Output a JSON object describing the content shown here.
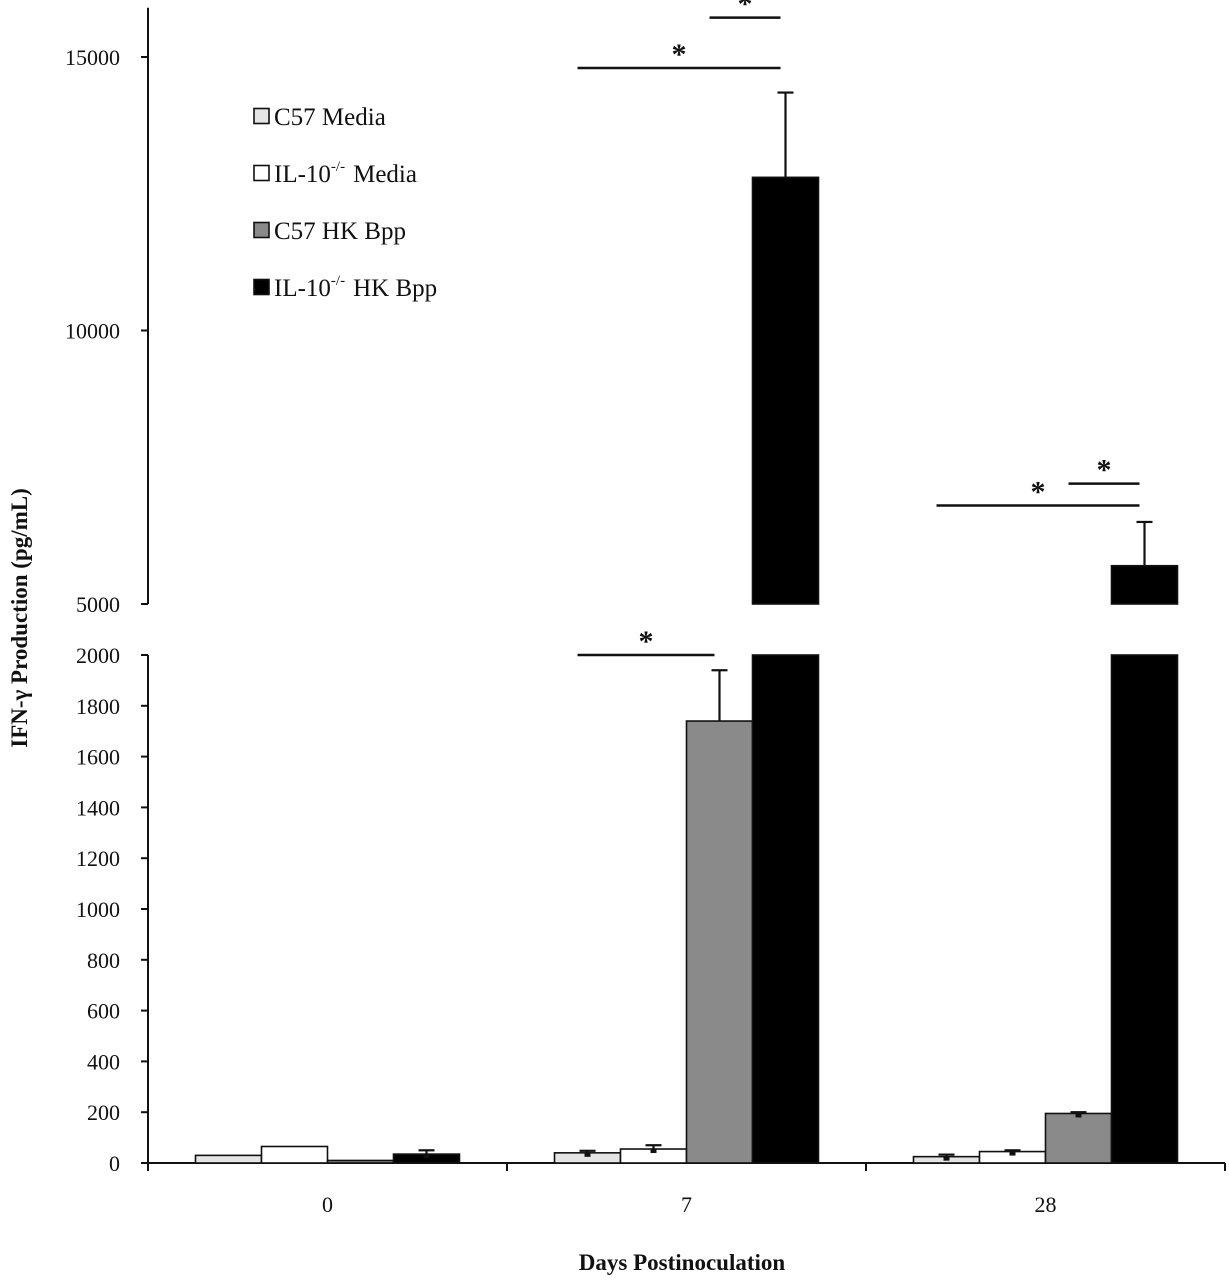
{
  "colors": {
    "C57 Media": "#e4e4e4",
    "IL-10 Media": "#ffffff",
    "C57 HK Bpp": "#8a8a8a",
    "IL-10 HK Bpp": "#000000",
    "ink": "#111111"
  },
  "chart_data": {
    "type": "bar",
    "title": "",
    "xlabel": "Days Postinoculation",
    "ylabel": "IFN-γ Production (pg/mL)",
    "categories": [
      "0",
      "7",
      "28"
    ],
    "broken_axis": {
      "lower_ylim": [
        0,
        2000
      ],
      "lower_ticks": [
        "0",
        "200",
        "400",
        "600",
        "800",
        "1000",
        "1200",
        "1400",
        "1600",
        "1800",
        "2000"
      ],
      "upper_ylim": [
        5000,
        15900
      ],
      "upper_ticks": [
        "5000",
        "10000",
        "15000"
      ]
    },
    "legend_placement": "top-left",
    "grid": false,
    "series": [
      {
        "name": "C57 Media",
        "legend_main": "C57 Media",
        "legend_sup": "",
        "legend_tail": "",
        "values": [
          30,
          40,
          25
        ],
        "errors": [
          0,
          8,
          8
        ]
      },
      {
        "name": "IL-10-/- Media",
        "legend_main": "IL-10",
        "legend_sup": "-/-",
        "legend_tail": "Media",
        "values": [
          65,
          55,
          45
        ],
        "errors": [
          0,
          15,
          5
        ]
      },
      {
        "name": "C57 HK Bpp",
        "legend_main": "C57 HK Bpp",
        "legend_sup": "",
        "legend_tail": "",
        "values": [
          10,
          1740,
          195
        ],
        "errors": [
          0,
          200,
          5
        ]
      },
      {
        "name": "IL-10-/- HK Bpp",
        "legend_main": "IL-10",
        "legend_sup": "-/-",
        "legend_tail": "HK Bpp",
        "values": [
          35,
          12800,
          5700
        ],
        "errors": [
          15,
          1550,
          800
        ]
      }
    ],
    "annotations": [
      {
        "text": "*",
        "category": 1,
        "from_series": 2,
        "to_series": 3,
        "y": 15720
      },
      {
        "text": "*",
        "category": 1,
        "from_series": 0,
        "to_series": 3,
        "y": 14800
      },
      {
        "text": "*",
        "category": 1,
        "from_series": 0,
        "to_series": 2,
        "y": 2000
      },
      {
        "text": "*",
        "category": 2,
        "from_series": 2,
        "to_series": 3,
        "y": 7200
      },
      {
        "text": "*",
        "category": 2,
        "from_series": 0,
        "to_series": 3,
        "y": 6800
      }
    ]
  }
}
